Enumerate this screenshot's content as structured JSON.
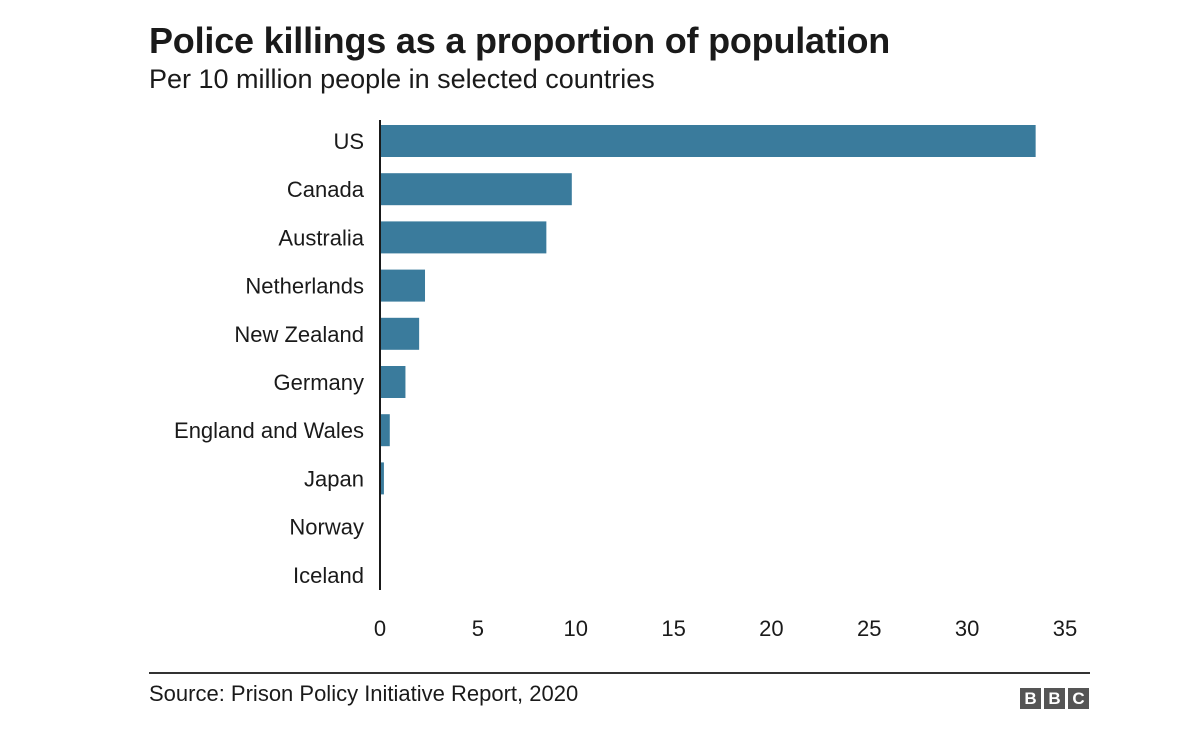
{
  "chart_data": {
    "type": "bar",
    "orientation": "horizontal",
    "title": "Police killings as a proportion of population",
    "subtitle": "Per 10 million people in selected countries",
    "categories": [
      "US",
      "Canada",
      "Australia",
      "Netherlands",
      "New Zealand",
      "Germany",
      "England and Wales",
      "Japan",
      "Norway",
      "Iceland"
    ],
    "values": [
      33.5,
      9.8,
      8.5,
      2.3,
      2.0,
      1.3,
      0.5,
      0.2,
      0,
      0
    ],
    "xlim": [
      0,
      35
    ],
    "xticks": [
      "0",
      "5",
      "10",
      "15",
      "20",
      "25",
      "30",
      "35"
    ],
    "grid": false,
    "bar_color": "#3a7b9c",
    "source": "Source: Prison Policy Initiative Report, 2020"
  },
  "branding": {
    "logo_letters": [
      "B",
      "B",
      "C"
    ]
  }
}
